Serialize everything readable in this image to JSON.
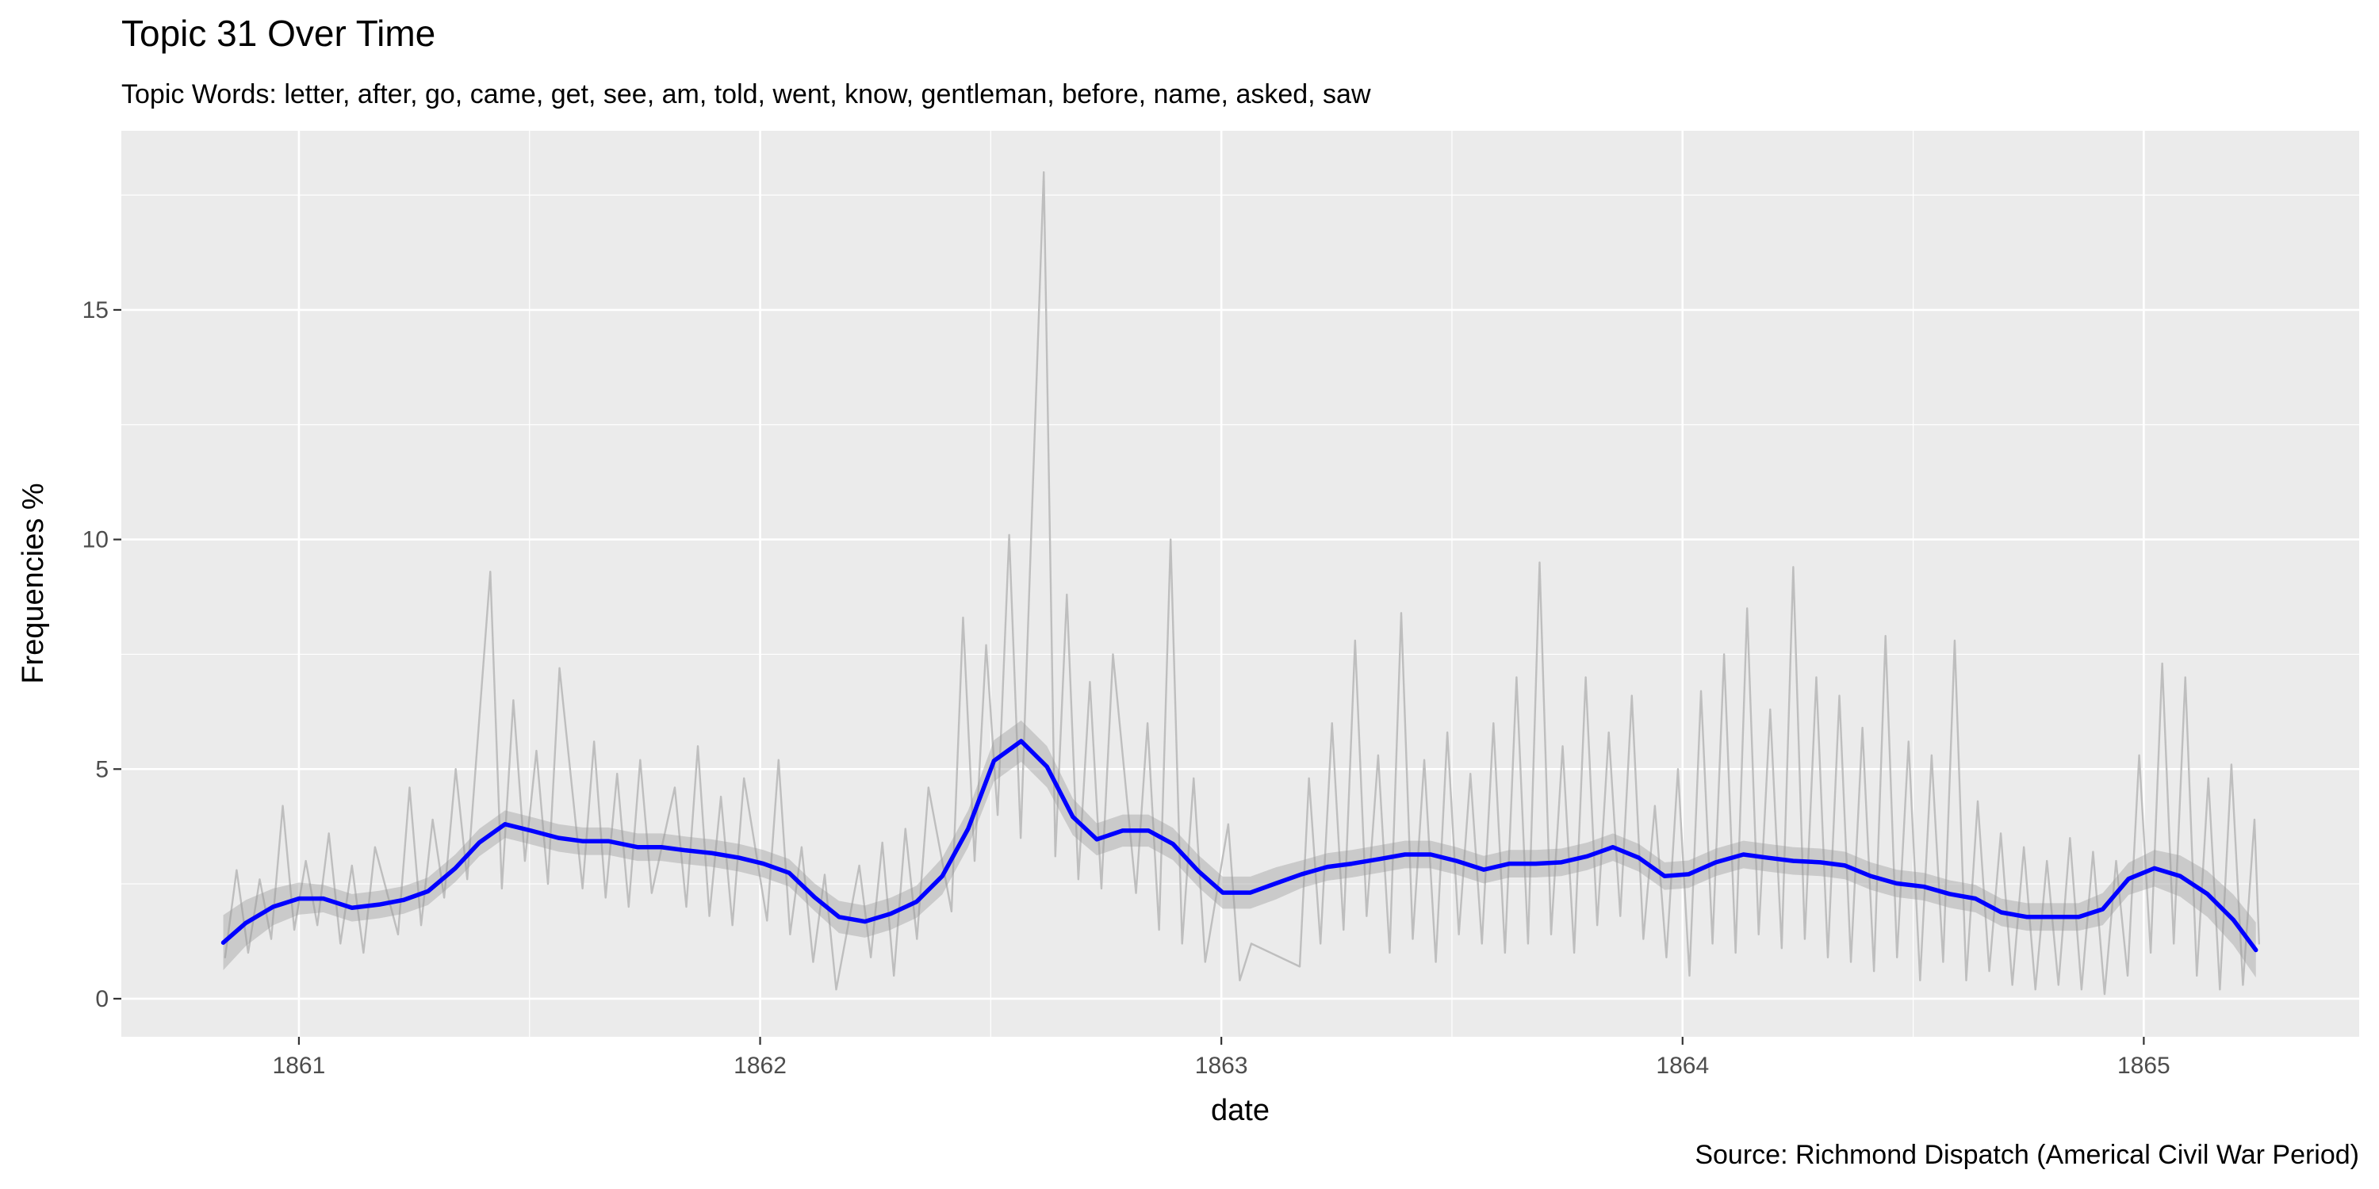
{
  "chart_data": {
    "type": "line",
    "title": "Topic 31 Over Time",
    "subtitle": "Topic Words: letter, after, go, came, get, see, am, told, went, know, gentleman, before, name, asked, saw",
    "x_label": "date",
    "y_label": "Frequencies %",
    "caption": "Source: Richmond Dispatch (Americal Civil War Period)",
    "xlim": [
      1860.615,
      1865.467
    ],
    "xticks": [
      1861,
      1862,
      1863,
      1864,
      1865
    ],
    "ylim": [
      -0.83,
      18.9
    ],
    "yticks": [
      0,
      5,
      10,
      15
    ],
    "grid": true,
    "series": [
      {
        "color": "#bebebe",
        "x": [
          1860.84,
          1860.865,
          1860.89,
          1860.915,
          1860.94,
          1860.965,
          1860.99,
          1861.015,
          1861.04,
          1861.065,
          1861.09,
          1861.115,
          1861.14,
          1861.165,
          1861.215,
          1861.24,
          1861.265,
          1861.29,
          1861.315,
          1861.34,
          1861.365,
          1861.415,
          1861.44,
          1861.465,
          1861.49,
          1861.515,
          1861.54,
          1861.565,
          1861.615,
          1861.64,
          1861.665,
          1861.69,
          1861.715,
          1861.74,
          1861.765,
          1861.815,
          1861.84,
          1861.865,
          1861.89,
          1861.915,
          1861.94,
          1861.965,
          1862.015,
          1862.04,
          1862.065,
          1862.09,
          1862.115,
          1862.14,
          1862.165,
          1862.215,
          1862.24,
          1862.265,
          1862.29,
          1862.315,
          1862.34,
          1862.365,
          1862.415,
          1862.44,
          1862.465,
          1862.49,
          1862.515,
          1862.54,
          1862.565,
          1862.615,
          1862.64,
          1862.665,
          1862.69,
          1862.715,
          1862.74,
          1862.765,
          1862.815,
          1862.84,
          1862.865,
          1862.89,
          1862.915,
          1862.94,
          1862.965,
          1863.015,
          1863.04,
          1863.065,
          1863.17,
          1863.19,
          1863.215,
          1863.24,
          1863.265,
          1863.29,
          1863.315,
          1863.34,
          1863.365,
          1863.39,
          1863.415,
          1863.44,
          1863.465,
          1863.49,
          1863.515,
          1863.54,
          1863.565,
          1863.59,
          1863.615,
          1863.64,
          1863.665,
          1863.69,
          1863.715,
          1863.74,
          1863.765,
          1863.79,
          1863.815,
          1863.84,
          1863.865,
          1863.89,
          1863.915,
          1863.94,
          1863.965,
          1863.99,
          1864.015,
          1864.04,
          1864.065,
          1864.09,
          1864.115,
          1864.14,
          1864.165,
          1864.19,
          1864.215,
          1864.24,
          1864.265,
          1864.29,
          1864.315,
          1864.34,
          1864.365,
          1864.39,
          1864.415,
          1864.44,
          1864.465,
          1864.49,
          1864.515,
          1864.54,
          1864.565,
          1864.59,
          1864.615,
          1864.64,
          1864.665,
          1864.69,
          1864.715,
          1864.74,
          1864.765,
          1864.79,
          1864.815,
          1864.84,
          1864.865,
          1864.89,
          1864.915,
          1864.94,
          1864.965,
          1864.99,
          1865.015,
          1865.04,
          1865.065,
          1865.09,
          1865.115,
          1865.14,
          1865.165,
          1865.19,
          1865.215,
          1865.24,
          1865.25
        ],
        "values": [
          0.9,
          2.8,
          1.0,
          2.6,
          1.3,
          4.2,
          1.5,
          3.0,
          1.6,
          3.6,
          1.2,
          2.9,
          1.0,
          3.3,
          1.4,
          4.6,
          1.6,
          3.9,
          2.2,
          5.0,
          2.6,
          9.3,
          2.4,
          6.5,
          3.0,
          5.4,
          2.5,
          7.2,
          2.4,
          5.6,
          2.2,
          4.9,
          2.0,
          5.2,
          2.3,
          4.6,
          2.0,
          5.5,
          1.8,
          4.4,
          1.6,
          4.8,
          1.7,
          5.2,
          1.4,
          3.3,
          0.8,
          2.7,
          0.2,
          2.9,
          0.9,
          3.4,
          0.5,
          3.7,
          1.3,
          4.6,
          1.9,
          8.3,
          3.0,
          7.7,
          4.0,
          10.1,
          3.5,
          18.0,
          3.1,
          8.8,
          2.6,
          6.9,
          2.4,
          7.5,
          2.3,
          6.0,
          1.5,
          10.0,
          1.2,
          4.8,
          0.8,
          3.8,
          0.4,
          1.2,
          0.7,
          4.8,
          1.2,
          6.0,
          1.5,
          7.8,
          1.8,
          5.3,
          1.0,
          8.4,
          1.3,
          5.2,
          0.8,
          5.8,
          1.4,
          4.9,
          1.2,
          6.0,
          1.0,
          7.0,
          1.2,
          9.5,
          1.4,
          5.5,
          1.0,
          7.0,
          1.6,
          5.8,
          1.8,
          6.6,
          1.3,
          4.2,
          0.9,
          5.0,
          0.5,
          6.7,
          1.2,
          7.5,
          1.0,
          8.5,
          1.4,
          6.3,
          1.1,
          9.4,
          1.3,
          7.0,
          0.9,
          6.6,
          0.8,
          5.9,
          0.6,
          7.9,
          0.9,
          5.6,
          0.4,
          5.3,
          0.8,
          7.8,
          0.4,
          4.3,
          0.6,
          3.6,
          0.3,
          3.3,
          0.2,
          3.0,
          0.3,
          3.5,
          0.2,
          3.2,
          0.1,
          3.0,
          0.5,
          5.3,
          1.0,
          7.3,
          1.2,
          7.0,
          0.5,
          4.8,
          0.2,
          5.1,
          0.3,
          3.9,
          1.2
        ]
      },
      {
        "color": "#0000ff",
        "band_color": "#999999",
        "x": [
          1860.836,
          1860.885,
          1860.944,
          1861.0,
          1861.053,
          1861.115,
          1861.174,
          1861.227,
          1861.28,
          1861.339,
          1861.391,
          1861.447,
          1861.503,
          1861.563,
          1861.615,
          1861.671,
          1861.734,
          1861.786,
          1861.839,
          1861.895,
          1861.954,
          1862.007,
          1862.063,
          1862.118,
          1862.171,
          1862.227,
          1862.283,
          1862.339,
          1862.395,
          1862.451,
          1862.507,
          1862.566,
          1862.622,
          1862.678,
          1862.73,
          1862.786,
          1862.842,
          1862.895,
          1862.951,
          1863.003,
          1863.063,
          1863.118,
          1863.174,
          1863.23,
          1863.283,
          1863.342,
          1863.398,
          1863.454,
          1863.51,
          1863.569,
          1863.625,
          1863.681,
          1863.737,
          1863.793,
          1863.849,
          1863.905,
          1863.961,
          1864.013,
          1864.072,
          1864.132,
          1864.184,
          1864.24,
          1864.299,
          1864.352,
          1864.408,
          1864.464,
          1864.523,
          1864.579,
          1864.635,
          1864.691,
          1864.747,
          1864.803,
          1864.859,
          1864.911,
          1864.967,
          1865.023,
          1865.079,
          1865.138,
          1865.194,
          1865.243
        ],
        "values": [
          1.22,
          1.65,
          2.0,
          2.18,
          2.18,
          1.98,
          2.05,
          2.15,
          2.34,
          2.84,
          3.4,
          3.8,
          3.66,
          3.5,
          3.43,
          3.43,
          3.3,
          3.3,
          3.23,
          3.17,
          3.07,
          2.94,
          2.74,
          2.21,
          1.78,
          1.68,
          1.85,
          2.11,
          2.67,
          3.7,
          5.18,
          5.61,
          5.05,
          3.96,
          3.47,
          3.66,
          3.66,
          3.37,
          2.77,
          2.31,
          2.31,
          2.51,
          2.71,
          2.87,
          2.94,
          3.04,
          3.14,
          3.14,
          3.0,
          2.81,
          2.94,
          2.94,
          2.97,
          3.1,
          3.3,
          3.07,
          2.67,
          2.71,
          2.97,
          3.14,
          3.07,
          3.0,
          2.97,
          2.9,
          2.67,
          2.51,
          2.44,
          2.28,
          2.18,
          1.88,
          1.78,
          1.78,
          1.78,
          1.95,
          2.61,
          2.84,
          2.67,
          2.28,
          1.72,
          1.06
        ],
        "lower": [
          0.62,
          1.15,
          1.6,
          1.83,
          1.88,
          1.68,
          1.75,
          1.85,
          2.04,
          2.54,
          3.1,
          3.5,
          3.36,
          3.2,
          3.13,
          3.13,
          3.0,
          3.0,
          2.93,
          2.87,
          2.77,
          2.64,
          2.44,
          1.91,
          1.43,
          1.33,
          1.5,
          1.76,
          2.27,
          3.3,
          4.73,
          5.16,
          4.6,
          3.56,
          3.12,
          3.31,
          3.31,
          3.02,
          2.42,
          1.96,
          1.96,
          2.16,
          2.41,
          2.57,
          2.64,
          2.74,
          2.84,
          2.84,
          2.7,
          2.51,
          2.64,
          2.64,
          2.67,
          2.8,
          3.0,
          2.77,
          2.37,
          2.41,
          2.67,
          2.84,
          2.77,
          2.7,
          2.67,
          2.6,
          2.37,
          2.21,
          2.14,
          1.98,
          1.88,
          1.58,
          1.48,
          1.48,
          1.48,
          1.6,
          2.26,
          2.44,
          2.22,
          1.78,
          1.17,
          0.46
        ],
        "upper": [
          1.82,
          2.15,
          2.4,
          2.53,
          2.48,
          2.28,
          2.35,
          2.45,
          2.64,
          3.14,
          3.7,
          4.1,
          3.96,
          3.8,
          3.73,
          3.73,
          3.6,
          3.6,
          3.53,
          3.47,
          3.37,
          3.24,
          3.04,
          2.51,
          2.13,
          2.03,
          2.2,
          2.46,
          3.07,
          4.1,
          5.63,
          6.06,
          5.5,
          4.36,
          3.82,
          4.01,
          4.01,
          3.72,
          3.12,
          2.66,
          2.66,
          2.86,
          3.01,
          3.17,
          3.24,
          3.34,
          3.44,
          3.44,
          3.3,
          3.11,
          3.24,
          3.24,
          3.27,
          3.4,
          3.6,
          3.37,
          2.97,
          3.01,
          3.27,
          3.44,
          3.37,
          3.3,
          3.27,
          3.2,
          2.97,
          2.81,
          2.74,
          2.58,
          2.48,
          2.18,
          2.08,
          2.08,
          2.08,
          2.3,
          2.96,
          3.24,
          3.12,
          2.78,
          2.27,
          1.66
        ]
      }
    ]
  }
}
